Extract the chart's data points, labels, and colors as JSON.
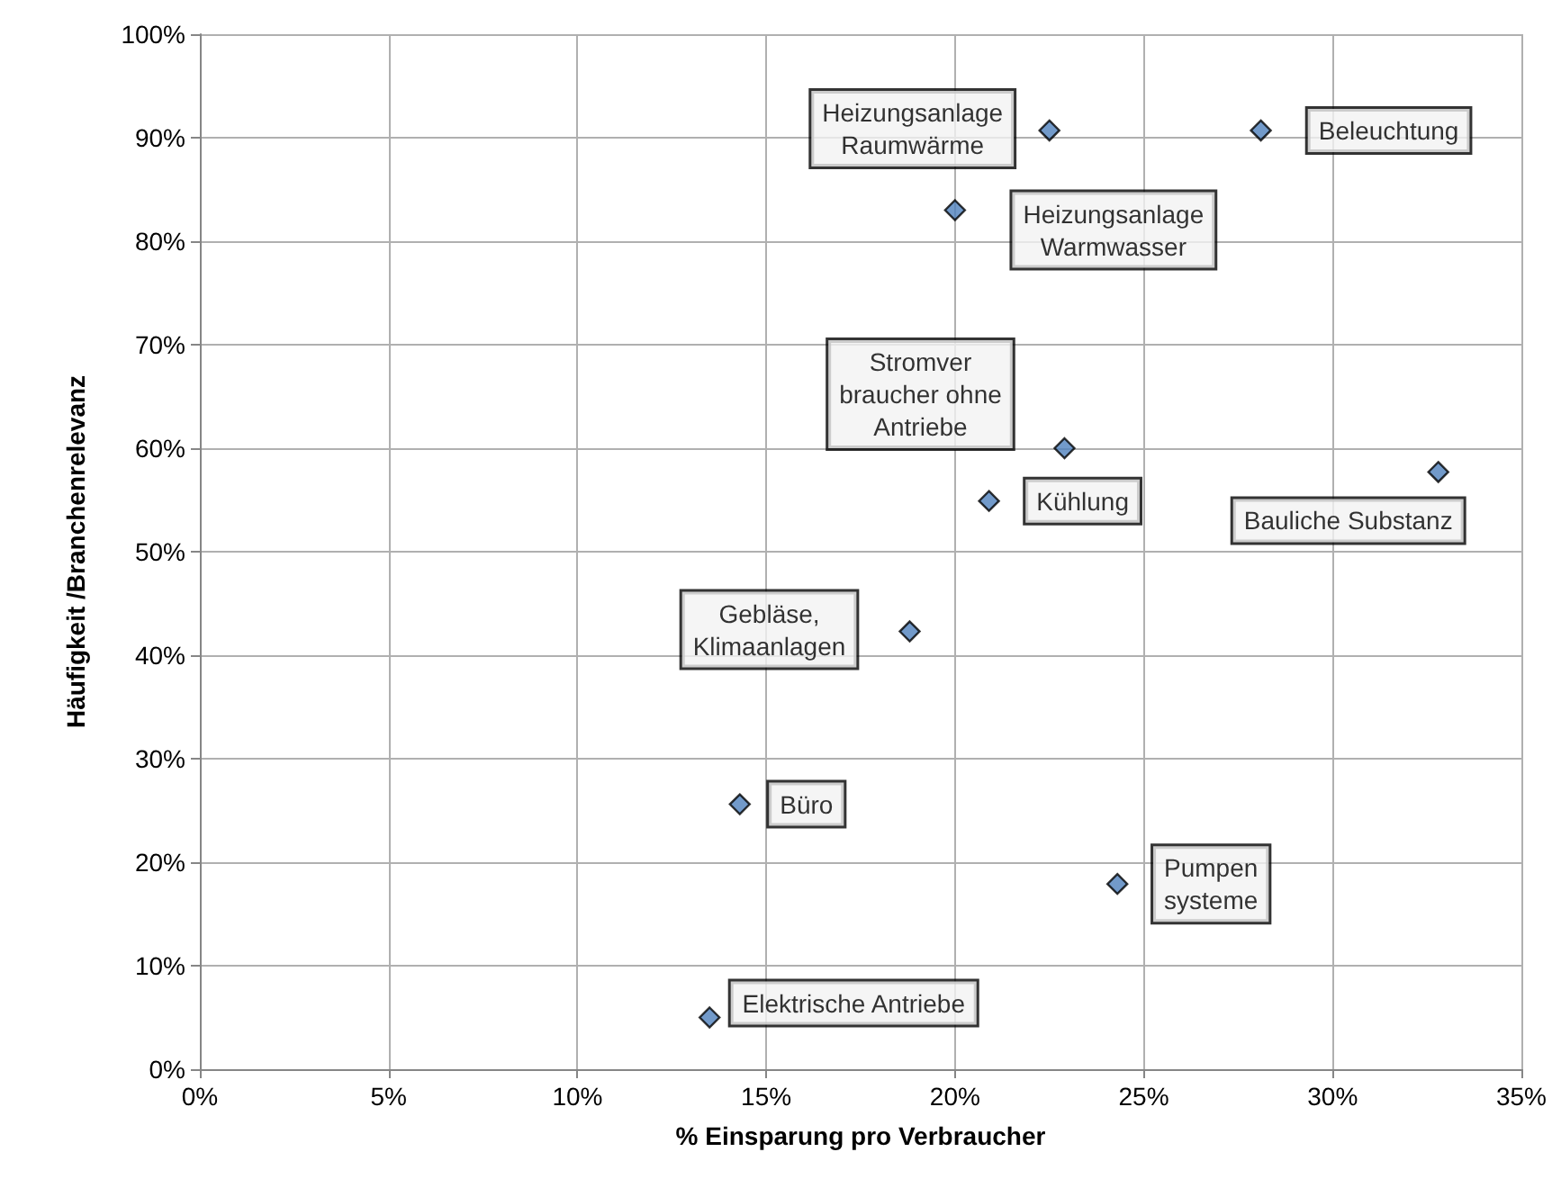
{
  "chart_data": {
    "type": "scatter",
    "xlabel": "% Einsparung pro Verbraucher",
    "ylabel": "Häufigkeit /Branchenrelevanz",
    "x": [
      22.5,
      28.1,
      20.0,
      22.9,
      20.9,
      32.8,
      18.8,
      14.3,
      24.3,
      13.5
    ],
    "series": [
      {
        "color": "#4f81bd",
        "values": [
          90.7,
          90.7,
          83.0,
          60.0,
          54.9,
          57.7,
          42.3,
          25.6,
          17.9,
          5.0
        ]
      }
    ],
    "xlim": [
      0,
      35
    ],
    "ylim": [
      0,
      100
    ],
    "xticks": [
      {
        "value": 0,
        "label": "0%"
      },
      {
        "value": 5,
        "label": "5%"
      },
      {
        "value": 10,
        "label": "10%"
      },
      {
        "value": 15,
        "label": "15%"
      },
      {
        "value": 20,
        "label": "20%"
      },
      {
        "value": 25,
        "label": "25%"
      },
      {
        "value": 30,
        "label": "30%"
      },
      {
        "value": 35,
        "label": "35%"
      }
    ],
    "yticks": [
      {
        "value": 0,
        "label": "0%"
      },
      {
        "value": 10,
        "label": "10%"
      },
      {
        "value": 20,
        "label": "20%"
      },
      {
        "value": 30,
        "label": "30%"
      },
      {
        "value": 40,
        "label": "40%"
      },
      {
        "value": 50,
        "label": "50%"
      },
      {
        "value": 60,
        "label": "60%"
      },
      {
        "value": 70,
        "label": "70%"
      },
      {
        "value": 80,
        "label": "80%"
      },
      {
        "value": 90,
        "label": "90%"
      },
      {
        "value": 100,
        "label": "100%"
      }
    ],
    "grid": true,
    "marker": "diamond",
    "annotations": [
      {
        "text": "Heizungsanlage\nRaumwärme",
        "x": 22.5,
        "y": 90.7
      },
      {
        "text": "Beleuchtung",
        "x": 28.1,
        "y": 90.7
      },
      {
        "text": "Heizungsanlage\nWarmwasser",
        "x": 20.0,
        "y": 83.0
      },
      {
        "text": "Stromver\nbraucher ohne\nAntriebe",
        "x": 22.9,
        "y": 60.0
      },
      {
        "text": "Kühlung",
        "x": 20.9,
        "y": 54.9
      },
      {
        "text": "Bauliche Substanz",
        "x": 32.8,
        "y": 57.7
      },
      {
        "text": "Gebläse,\nKlimaanlagen",
        "x": 18.8,
        "y": 42.3
      },
      {
        "text": "Büro",
        "x": 14.3,
        "y": 25.6
      },
      {
        "text": "Pumpen\nsysteme",
        "x": 24.3,
        "y": 17.9
      },
      {
        "text": "Elektrische Antriebe",
        "x": 13.5,
        "y": 5.0
      }
    ]
  }
}
